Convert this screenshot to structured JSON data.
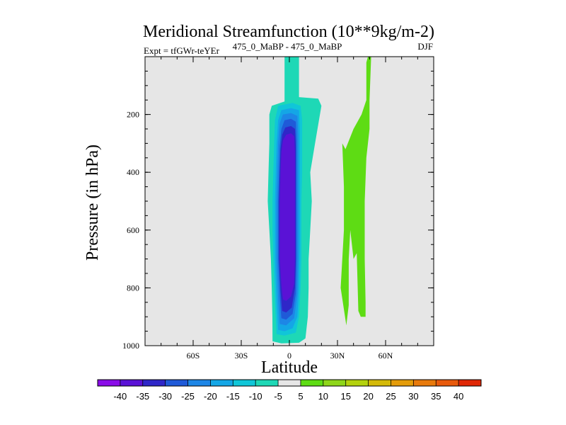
{
  "chart_data": {
    "type": "filled-contour",
    "title": "Meridional Streamfunction (10**9kg/m-2)",
    "subtitle_left": "Expt = tfGWr-teYEr",
    "subtitle_center": "475_0_MaBP - 475_0_MaBP",
    "subtitle_right": "DJF",
    "xlabel": "Latitude",
    "ylabel": "Pressure (in hPa)",
    "xlim": [
      -90,
      90
    ],
    "ylim": [
      0,
      1000
    ],
    "y_reversed": true,
    "x_ticks": [
      {
        "value": -60,
        "label": "60S"
      },
      {
        "value": -30,
        "label": "30S"
      },
      {
        "value": 0,
        "label": "0"
      },
      {
        "value": 30,
        "label": "30N"
      },
      {
        "value": 60,
        "label": "60N"
      }
    ],
    "y_ticks": [
      {
        "value": 200,
        "label": "200"
      },
      {
        "value": 400,
        "label": "400"
      },
      {
        "value": 600,
        "label": "600"
      },
      {
        "value": 800,
        "label": "800"
      },
      {
        "value": 1000,
        "label": "1000"
      }
    ],
    "background_color": "#e6e6e6",
    "colorbar": {
      "levels": [
        "-40",
        "-35",
        "-30",
        "-25",
        "-20",
        "-15",
        "-10",
        "-5",
        "5",
        "10",
        "15",
        "20",
        "25",
        "30",
        "35",
        "40"
      ],
      "colors": [
        "#8a0ce8",
        "#5a12d6",
        "#2f27c8",
        "#1f5ad8",
        "#1d86e6",
        "#14a6e6",
        "#10c6d8",
        "#1ed8b6",
        "#e6e6e6",
        "#5edc14",
        "#8ed61a",
        "#b4d20e",
        "#d4ba08",
        "#e49c0a",
        "#e87a0c",
        "#e85a0c",
        "#e02806"
      ]
    },
    "regions": [
      {
        "name": "negative-cell-outer",
        "level_index": 7,
        "points": [
          [
            -10.5,
            985
          ],
          [
            -10.6,
            900
          ],
          [
            -11,
            800
          ],
          [
            -11.5,
            700
          ],
          [
            -12.5,
            600
          ],
          [
            -13.5,
            500
          ],
          [
            -13,
            400
          ],
          [
            -12.5,
            300
          ],
          [
            -12.5,
            200
          ],
          [
            -11,
            170
          ],
          [
            -3,
            155
          ],
          [
            -3,
            0
          ],
          [
            6,
            0
          ],
          [
            6,
            140
          ],
          [
            18,
            145
          ],
          [
            20,
            170
          ],
          [
            16,
            300
          ],
          [
            13,
            400
          ],
          [
            14,
            500
          ],
          [
            13,
            600
          ],
          [
            12,
            700
          ],
          [
            12,
            800
          ],
          [
            11.5,
            900
          ],
          [
            10,
            975
          ],
          [
            6,
            990
          ],
          [
            -5,
            992
          ]
        ]
      },
      {
        "name": "negative-cell-10",
        "level_index": 6,
        "points": [
          [
            -8,
            960
          ],
          [
            -9,
            850
          ],
          [
            -10,
            700
          ],
          [
            -10.5,
            600
          ],
          [
            -10.5,
            500
          ],
          [
            -10,
            400
          ],
          [
            -9.5,
            300
          ],
          [
            -9,
            220
          ],
          [
            -7,
            170
          ],
          [
            2,
            160
          ],
          [
            7,
            170
          ],
          [
            8,
            220
          ],
          [
            8,
            300
          ],
          [
            8,
            400
          ],
          [
            7.5,
            500
          ],
          [
            7.5,
            600
          ],
          [
            7.5,
            700
          ],
          [
            7,
            800
          ],
          [
            6,
            900
          ],
          [
            4,
            955
          ],
          [
            -3,
            965
          ]
        ]
      },
      {
        "name": "negative-cell-15",
        "level_index": 5,
        "points": [
          [
            -7,
            945
          ],
          [
            -8,
            850
          ],
          [
            -9,
            700
          ],
          [
            -9,
            600
          ],
          [
            -9,
            500
          ],
          [
            -8.5,
            400
          ],
          [
            -8,
            300
          ],
          [
            -7,
            220
          ],
          [
            -5,
            185
          ],
          [
            1,
            178
          ],
          [
            6,
            185
          ],
          [
            6.5,
            250
          ],
          [
            6.5,
            350
          ],
          [
            6.5,
            500
          ],
          [
            6.5,
            650
          ],
          [
            6,
            800
          ],
          [
            5,
            900
          ],
          [
            2,
            940
          ],
          [
            -3,
            950
          ]
        ]
      },
      {
        "name": "negative-cell-20",
        "level_index": 4,
        "points": [
          [
            -6,
            925
          ],
          [
            -7,
            840
          ],
          [
            -8,
            700
          ],
          [
            -8,
            600
          ],
          [
            -8,
            500
          ],
          [
            -7.5,
            400
          ],
          [
            -7,
            300
          ],
          [
            -6,
            230
          ],
          [
            -4,
            200
          ],
          [
            1,
            195
          ],
          [
            5,
            205
          ],
          [
            5.5,
            270
          ],
          [
            5.5,
            400
          ],
          [
            5.5,
            550
          ],
          [
            5.5,
            700
          ],
          [
            5,
            820
          ],
          [
            3,
            905
          ],
          [
            -2,
            930
          ]
        ]
      },
      {
        "name": "negative-cell-25",
        "level_index": 3,
        "points": [
          [
            -5,
            905
          ],
          [
            -6,
            830
          ],
          [
            -7,
            700
          ],
          [
            -7,
            600
          ],
          [
            -7,
            500
          ],
          [
            -6.5,
            400
          ],
          [
            -6,
            310
          ],
          [
            -5,
            250
          ],
          [
            -3,
            220
          ],
          [
            1,
            215
          ],
          [
            4,
            225
          ],
          [
            4.5,
            290
          ],
          [
            4.5,
            400
          ],
          [
            4.5,
            550
          ],
          [
            4.5,
            700
          ],
          [
            4,
            820
          ],
          [
            2,
            890
          ],
          [
            -2,
            910
          ]
        ]
      },
      {
        "name": "negative-cell-30",
        "level_index": 2,
        "points": [
          [
            -4.5,
            880
          ],
          [
            -5.5,
            810
          ],
          [
            -6.5,
            700
          ],
          [
            -6.5,
            600
          ],
          [
            -6.5,
            500
          ],
          [
            -6,
            400
          ],
          [
            -5.5,
            320
          ],
          [
            -4.5,
            270
          ],
          [
            -2.5,
            245
          ],
          [
            1,
            240
          ],
          [
            3.5,
            250
          ],
          [
            4,
            310
          ],
          [
            4,
            420
          ],
          [
            4,
            560
          ],
          [
            4,
            700
          ],
          [
            3.5,
            800
          ],
          [
            1.5,
            868
          ],
          [
            -2,
            885
          ]
        ]
      },
      {
        "name": "negative-cell-35",
        "level_index": 1,
        "points": [
          [
            -4,
            840
          ],
          [
            -5,
            790
          ],
          [
            -6,
            700
          ],
          [
            -6,
            600
          ],
          [
            -6,
            500
          ],
          [
            -5.5,
            400
          ],
          [
            -5,
            330
          ],
          [
            -4,
            290
          ],
          [
            -2,
            270
          ],
          [
            1,
            265
          ],
          [
            3,
            275
          ],
          [
            3.5,
            330
          ],
          [
            3.5,
            430
          ],
          [
            3.5,
            570
          ],
          [
            3.5,
            700
          ],
          [
            3,
            785
          ],
          [
            1,
            830
          ],
          [
            -2,
            845
          ]
        ]
      },
      {
        "name": "positive-cell-right",
        "level_index": 9,
        "points": [
          [
            32,
            800
          ],
          [
            34,
            600
          ],
          [
            34,
            450
          ],
          [
            33,
            300
          ],
          [
            35,
            320
          ],
          [
            40,
            250
          ],
          [
            45,
            200
          ],
          [
            48,
            150
          ],
          [
            48,
            20
          ],
          [
            49,
            0
          ],
          [
            51,
            0
          ],
          [
            50,
            150
          ],
          [
            50,
            250
          ],
          [
            48,
            350
          ],
          [
            47,
            500
          ],
          [
            47,
            700
          ],
          [
            47.5,
            850
          ],
          [
            47.5,
            900
          ],
          [
            44.5,
            900
          ],
          [
            43,
            880
          ],
          [
            42,
            680
          ],
          [
            40,
            700
          ],
          [
            38,
            600
          ],
          [
            37,
            700
          ],
          [
            37,
            860
          ],
          [
            35.5,
            930
          ]
        ]
      }
    ]
  }
}
